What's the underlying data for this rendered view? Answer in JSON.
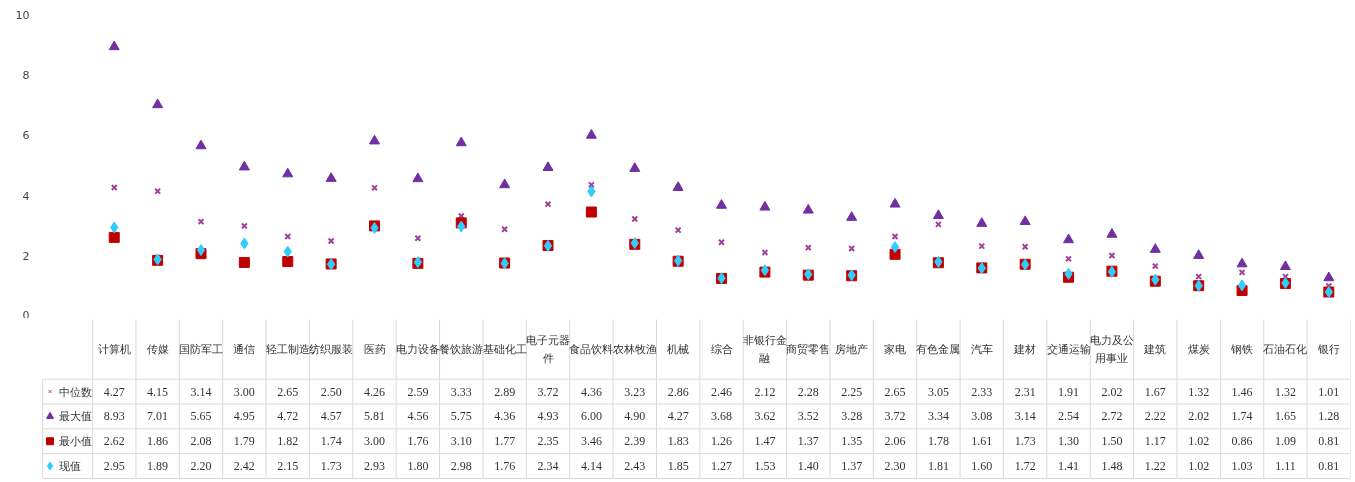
{
  "chart_data": {
    "type": "scatter",
    "categories": [
      "计算机",
      "传媒",
      "国防军工",
      "通信",
      "轻工制造",
      "纺织服装",
      "医药",
      "电力设备",
      "餐饮旅游",
      "基础化工",
      "电子元器件",
      "食品饮料",
      "农林牧渔",
      "机械",
      "综合",
      "非银行金融",
      "商贸零售",
      "房地产",
      "家电",
      "有色金属",
      "汽车",
      "建材",
      "交通运输",
      "电力及公用事业",
      "建筑",
      "煤炭",
      "钢铁",
      "石油石化",
      "银行"
    ],
    "series": [
      {
        "name": "中位数",
        "color": "#a0409a",
        "marker": "cross",
        "values": [
          4.27,
          4.15,
          3.14,
          3.0,
          2.65,
          2.5,
          4.26,
          2.59,
          3.33,
          2.89,
          3.72,
          4.36,
          3.23,
          2.86,
          2.46,
          2.12,
          2.28,
          2.25,
          2.65,
          3.05,
          2.33,
          2.31,
          1.91,
          2.02,
          1.67,
          1.32,
          1.46,
          1.32,
          1.01
        ],
        "value_labels": [
          "4.27",
          "4.15",
          "3.14",
          "3.00",
          "2.65",
          "2.50",
          "4.26",
          "2.59",
          "3.33",
          "2.89",
          "3.72",
          "4.36",
          "3.23",
          "2.86",
          "2.46",
          "2.12",
          "2.28",
          "2.25",
          "2.65",
          "3.05",
          "2.33",
          "2.31",
          "1.91",
          "2.02",
          "1.67",
          "1.32",
          "1.46",
          "1.32",
          "1.01"
        ]
      },
      {
        "name": "最大值",
        "color": "#7030a0",
        "marker": "triangle",
        "values": [
          8.93,
          7.01,
          5.65,
          4.95,
          4.72,
          4.57,
          5.81,
          4.56,
          5.75,
          4.36,
          4.93,
          6.0,
          4.9,
          4.27,
          3.68,
          3.62,
          3.52,
          3.28,
          3.72,
          3.34,
          3.08,
          3.14,
          2.54,
          2.72,
          2.22,
          2.02,
          1.74,
          1.65,
          1.28
        ],
        "value_labels": [
          "8.93",
          "7.01",
          "5.65",
          "4.95",
          "4.72",
          "4.57",
          "5.81",
          "4.56",
          "5.75",
          "4.36",
          "4.93",
          "6.00",
          "4.90",
          "4.27",
          "3.68",
          "3.62",
          "3.52",
          "3.28",
          "3.72",
          "3.34",
          "3.08",
          "3.14",
          "2.54",
          "2.72",
          "2.22",
          "2.02",
          "1.74",
          "1.65",
          "1.28"
        ]
      },
      {
        "name": "最小值",
        "color": "#c00000",
        "marker": "square",
        "values": [
          2.62,
          1.86,
          2.08,
          1.79,
          1.82,
          1.74,
          3.0,
          1.76,
          3.1,
          1.77,
          2.35,
          3.46,
          2.39,
          1.83,
          1.26,
          1.47,
          1.37,
          1.35,
          2.06,
          1.78,
          1.61,
          1.73,
          1.3,
          1.5,
          1.17,
          1.02,
          0.86,
          1.09,
          0.81
        ],
        "value_labels": [
          "2.62",
          "1.86",
          "2.08",
          "1.79",
          "1.82",
          "1.74",
          "3.00",
          "1.76",
          "3.10",
          "1.77",
          "2.35",
          "3.46",
          "2.39",
          "1.83",
          "1.26",
          "1.47",
          "1.37",
          "1.35",
          "2.06",
          "1.78",
          "1.61",
          "1.73",
          "1.30",
          "1.50",
          "1.17",
          "1.02",
          "0.86",
          "1.09",
          "0.81"
        ]
      },
      {
        "name": "现值",
        "color": "#33ccff",
        "marker": "diamond",
        "values": [
          2.95,
          1.89,
          2.2,
          2.42,
          2.15,
          1.73,
          2.93,
          1.8,
          2.98,
          1.76,
          2.34,
          4.14,
          2.43,
          1.85,
          1.27,
          1.53,
          1.4,
          1.37,
          2.3,
          1.81,
          1.6,
          1.72,
          1.41,
          1.48,
          1.22,
          1.02,
          1.03,
          1.11,
          0.81
        ],
        "value_labels": [
          "2.95",
          "1.89",
          "2.20",
          "2.42",
          "2.15",
          "1.73",
          "2.93",
          "1.80",
          "2.98",
          "1.76",
          "2.34",
          "4.14",
          "2.43",
          "1.85",
          "1.27",
          "1.53",
          "1.40",
          "1.37",
          "2.30",
          "1.81",
          "1.60",
          "1.72",
          "1.41",
          "1.48",
          "1.22",
          "1.02",
          "1.03",
          "1.11",
          "0.81"
        ]
      }
    ],
    "ylim": [
      0,
      10
    ],
    "yticks": [
      0,
      2,
      4,
      6,
      8,
      10
    ],
    "grid": false,
    "legend": "bottom left"
  }
}
